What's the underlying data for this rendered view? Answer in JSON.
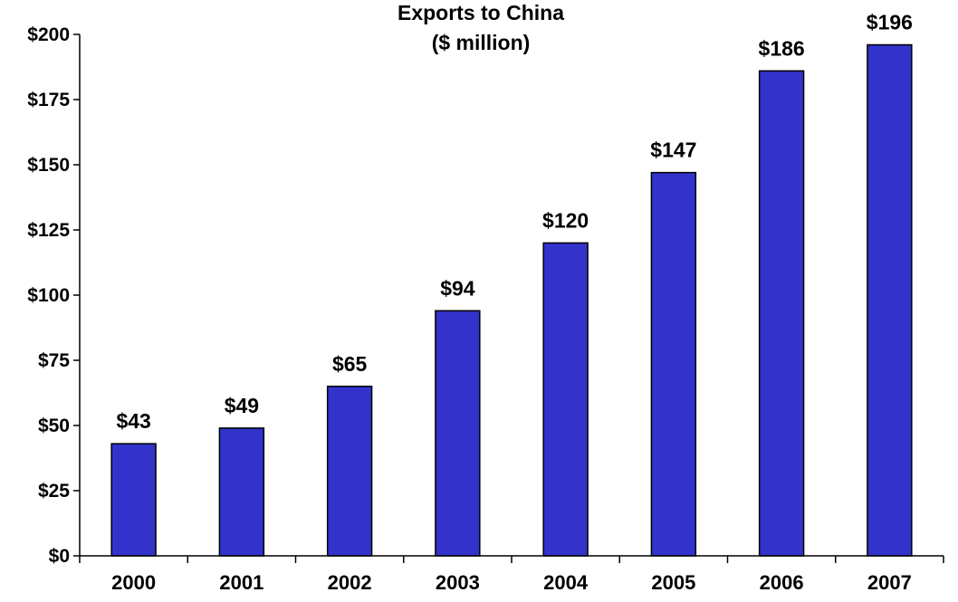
{
  "chart_data": {
    "type": "bar",
    "title": "Exports to China",
    "subtitle": "($ million)",
    "categories": [
      "2000",
      "2001",
      "2002",
      "2003",
      "2004",
      "2005",
      "2006",
      "2007"
    ],
    "values": [
      43,
      49,
      65,
      94,
      120,
      147,
      186,
      196
    ],
    "data_labels": [
      "$43",
      "$49",
      "$65",
      "$94",
      "$120",
      "$147",
      "$186",
      "$196"
    ],
    "ylim": [
      0,
      200
    ],
    "y_ticks": [
      0,
      25,
      50,
      75,
      100,
      125,
      150,
      175,
      200
    ],
    "y_tick_labels": [
      "$0",
      "$25",
      "$50",
      "$75",
      "$100",
      "$125",
      "$150",
      "$175",
      "$200"
    ],
    "xlabel": "",
    "ylabel": "",
    "grid": false,
    "legend": "none",
    "bar_color": "#3333CC"
  }
}
